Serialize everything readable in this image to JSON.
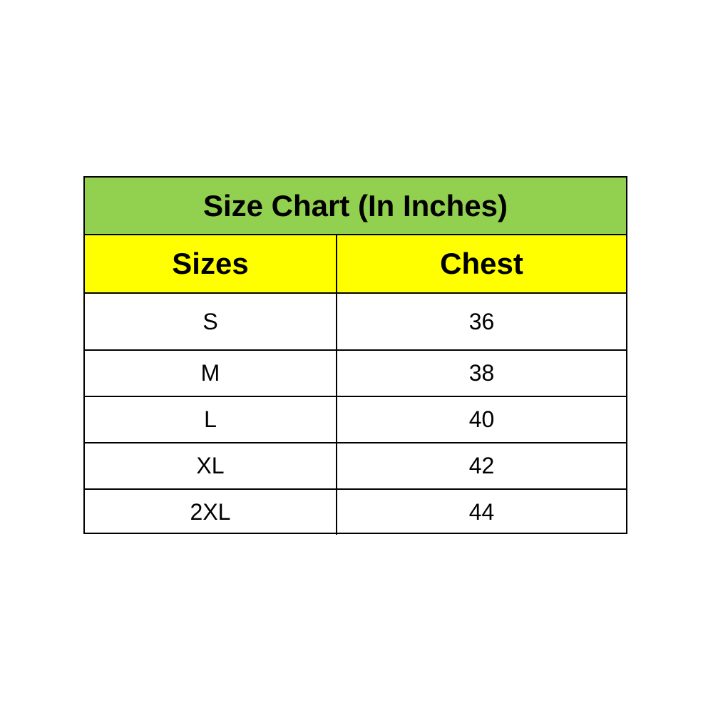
{
  "colors": {
    "title_bg": "#92D050",
    "header_bg": "#FFFF00",
    "body_bg": "#FFFFFF",
    "border": "#000000"
  },
  "table": {
    "title": "Size Chart (In Inches)",
    "headers": [
      "Sizes",
      "Chest"
    ],
    "rows": [
      [
        "S",
        "36"
      ],
      [
        "M",
        "38"
      ],
      [
        "L",
        "40"
      ],
      [
        "XL",
        "42"
      ],
      [
        "2XL",
        "44"
      ]
    ]
  }
}
